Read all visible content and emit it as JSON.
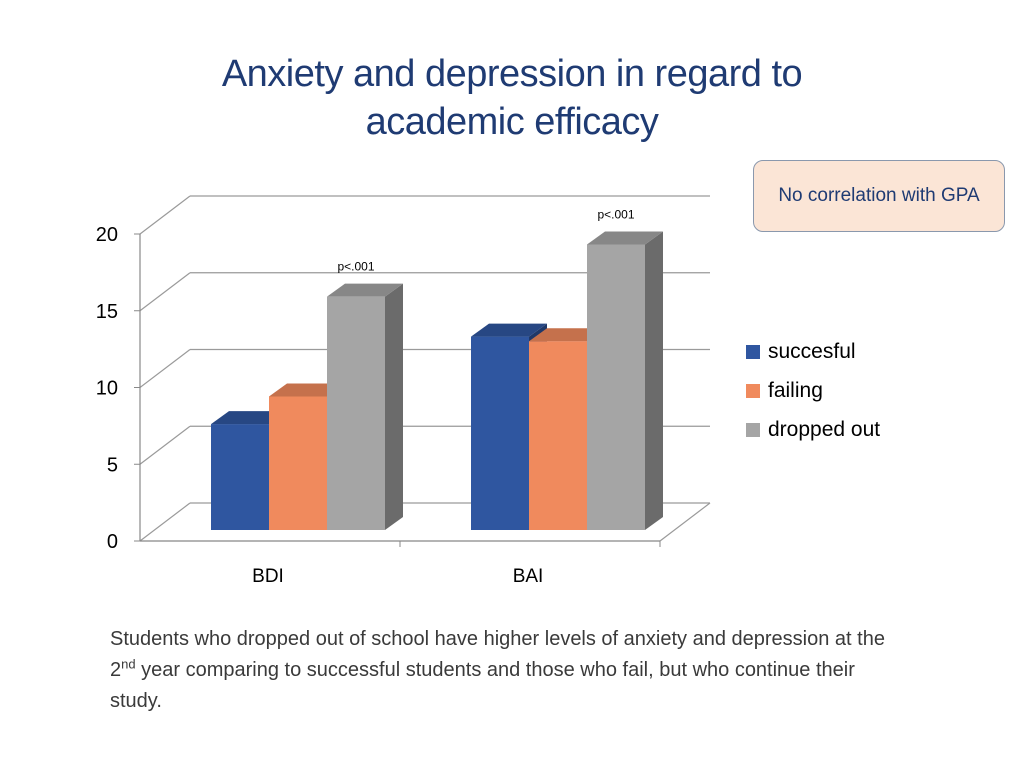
{
  "slide": {
    "title_line1": "Anxiety and depression in regard to",
    "title_line2": "academic efficacy",
    "callout": "No correlation with GPA",
    "caption_part1": "Students who dropped out of school have higher levels of anxiety and depression at the 2",
    "caption_sup": "nd",
    "caption_part2": " year comparing to successful students and those who fail, but who continue their study."
  },
  "chart_data": {
    "type": "bar",
    "style": "3d-clustered-column",
    "categories": [
      "BDI",
      "BAI"
    ],
    "series": [
      {
        "name": "succesful",
        "color": "#2f56a0",
        "values": [
          6.9,
          12.6
        ]
      },
      {
        "name": "failing",
        "color": "#f08a5d",
        "values": [
          8.7,
          12.3
        ]
      },
      {
        "name": "dropped out",
        "color": "#a5a5a5",
        "values": [
          15.2,
          18.6
        ]
      }
    ],
    "annotations": [
      {
        "category": "BDI",
        "text": "p<.001"
      },
      {
        "category": "BAI",
        "text": "p<.001"
      }
    ],
    "yticks": [
      "0",
      "5",
      "10",
      "15",
      "20"
    ],
    "ylim": [
      0,
      20
    ],
    "grid": true,
    "legend_position": "right"
  }
}
